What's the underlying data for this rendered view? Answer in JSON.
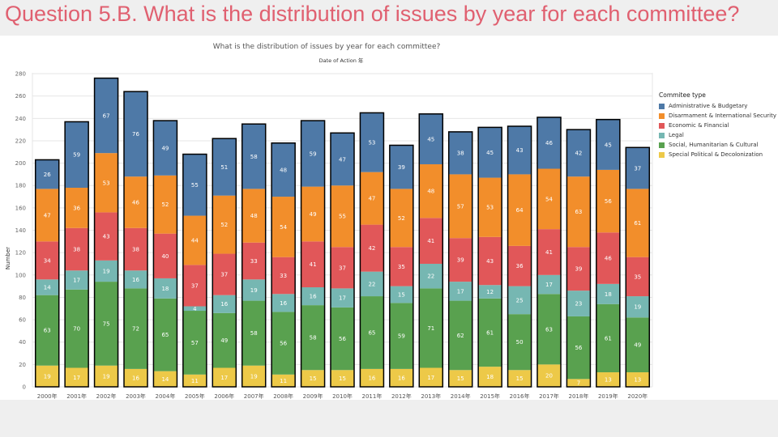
{
  "slide_title": "Question 5.B. What is the distribution of issues by year for each committee?",
  "colors": {
    "Administrative & Budgetary": "#4e79a7",
    "Disarmament & International Security": "#f28e2b",
    "Economic & Financial": "#e15759",
    "Legal": "#76b7b2",
    "Social, Humanitarian & Cultural": "#59a14f",
    "Special Political & Decolonization": "#edc948"
  },
  "chart_data": {
    "type": "bar",
    "stacked": true,
    "title": "What is the distribution of issues by year for each committee?",
    "xlabel": "Date of Action 年",
    "ylabel": "Number",
    "ylim": [
      0,
      290
    ],
    "yticks": [
      0,
      20,
      40,
      60,
      80,
      100,
      120,
      140,
      160,
      180,
      200,
      220,
      240,
      260,
      280
    ],
    "grid": true,
    "legend": "right",
    "legend_title": "Commitee type",
    "categories": [
      "2000年",
      "2001年",
      "2002年",
      "2003年",
      "2004年",
      "2005年",
      "2006年",
      "2007年",
      "2008年",
      "2009年",
      "2010年",
      "2011年",
      "2012年",
      "2013年",
      "2014年",
      "2015年",
      "2016年",
      "2017年",
      "2018年",
      "2019年",
      "2020年"
    ],
    "series": [
      {
        "name": "Special Political & Decolonization",
        "values": [
          19,
          17,
          19,
          16,
          14,
          11,
          17,
          19,
          11,
          15,
          15,
          16,
          16,
          17,
          15,
          18,
          15,
          20,
          7,
          13,
          13
        ]
      },
      {
        "name": "Social, Humanitarian & Cultural",
        "values": [
          63,
          70,
          75,
          72,
          65,
          57,
          49,
          58,
          56,
          58,
          56,
          65,
          59,
          71,
          62,
          61,
          50,
          63,
          56,
          61,
          49
        ]
      },
      {
        "name": "Legal",
        "values": [
          14,
          17,
          19,
          16,
          18,
          4,
          16,
          19,
          16,
          16,
          17,
          22,
          15,
          22,
          17,
          12,
          25,
          17,
          23,
          18,
          19
        ]
      },
      {
        "name": "Economic & Financial",
        "values": [
          34,
          38,
          43,
          38,
          40,
          37,
          37,
          33,
          33,
          41,
          37,
          42,
          35,
          41,
          39,
          43,
          36,
          41,
          39,
          46,
          35
        ]
      },
      {
        "name": "Disarmament & International Security",
        "values": [
          47,
          36,
          53,
          46,
          52,
          44,
          52,
          48,
          54,
          49,
          55,
          47,
          52,
          48,
          57,
          53,
          64,
          54,
          63,
          56,
          61
        ]
      },
      {
        "name": "Administrative & Budgetary",
        "values": [
          26,
          59,
          67,
          76,
          49,
          55,
          51,
          58,
          48,
          59,
          47,
          53,
          39,
          45,
          38,
          45,
          43,
          46,
          42,
          45,
          37
        ]
      }
    ]
  }
}
